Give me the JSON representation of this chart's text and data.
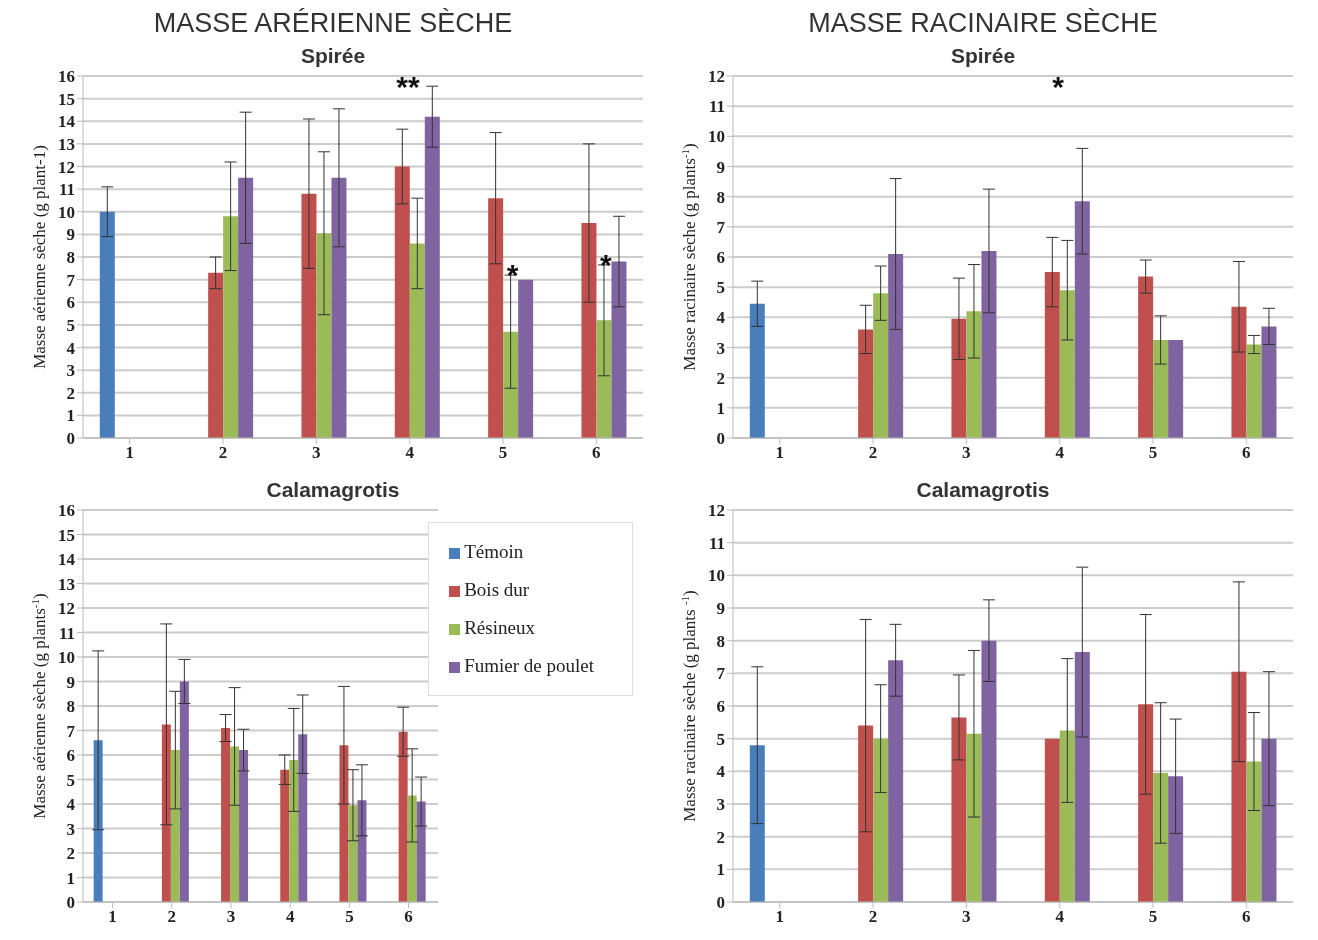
{
  "chart_data": [
    {
      "type": "bar",
      "title": "MASSE ARÉRIENNE SÈCHE",
      "subtitle": "Spirée",
      "ylabel": "Masse aérienne  sèche (g plant-1)",
      "categories": [
        "1",
        "2",
        "3",
        "4",
        "5",
        "6"
      ],
      "ylim": [
        0,
        16
      ],
      "yticks": [
        0,
        1,
        2,
        3,
        4,
        5,
        6,
        7,
        8,
        9,
        10,
        11,
        12,
        13,
        14,
        15,
        16
      ],
      "grid": "y",
      "legend": false,
      "series": [
        {
          "color": "#4a7ebb",
          "values": [
            10.0,
            null,
            null,
            null,
            null,
            null
          ],
          "errors": [
            1.1,
            null,
            null,
            null,
            null,
            null
          ]
        },
        {
          "color": "#c0504d",
          "values": [
            null,
            7.3,
            10.8,
            12.0,
            10.6,
            9.5
          ],
          "errors": [
            null,
            0.7,
            3.3,
            1.65,
            2.9,
            3.5
          ]
        },
        {
          "color": "#9bbb59",
          "values": [
            null,
            9.8,
            9.05,
            8.6,
            4.7,
            5.2
          ],
          "errors": [
            null,
            2.4,
            3.6,
            2.0,
            2.5,
            2.45
          ]
        },
        {
          "color": "#8064a2",
          "values": [
            null,
            11.5,
            11.5,
            14.2,
            7.0,
            7.8
          ],
          "errors": [
            null,
            2.9,
            3.05,
            1.35,
            null,
            2.0
          ]
        }
      ],
      "annotations": [
        "**",
        {
          "text": "*",
          "x": "5",
          "y": 4.7
        },
        {
          "text": "*",
          "x": "6",
          "y": 5.2
        }
      ]
    },
    {
      "type": "bar",
      "title": "MASSE RACINAIRE SÈCHE",
      "subtitle": "Spirée",
      "ylabel": "Masse racinaire sèche (g plants$^{-1}$)",
      "categories": [
        "1",
        "2",
        "3",
        "4",
        "5",
        "6"
      ],
      "ylim": [
        0,
        12
      ],
      "yticks": [
        0,
        1,
        2,
        3,
        4,
        5,
        6,
        7,
        8,
        9,
        10,
        11,
        12
      ],
      "grid": "y",
      "legend": false,
      "series": [
        {
          "color": "#4a7ebb",
          "values": [
            4.45,
            null,
            null,
            null,
            null,
            null
          ],
          "errors": [
            0.75,
            null,
            null,
            null,
            null,
            null
          ]
        },
        {
          "color": "#c0504d",
          "values": [
            null,
            3.6,
            3.95,
            5.5,
            5.35,
            4.35
          ],
          "errors": [
            null,
            0.8,
            1.35,
            1.15,
            0.55,
            1.5
          ]
        },
        {
          "color": "#9bbb59",
          "values": [
            null,
            4.8,
            4.2,
            4.9,
            3.25,
            3.1
          ],
          "errors": [
            null,
            0.9,
            1.55,
            1.65,
            0.8,
            0.3
          ]
        },
        {
          "color": "#8064a2",
          "values": [
            null,
            6.1,
            6.2,
            7.85,
            3.25,
            3.7
          ],
          "errors": [
            null,
            2.5,
            2.05,
            1.75,
            null,
            0.6
          ]
        }
      ],
      "annotations": [
        "*"
      ]
    },
    {
      "type": "bar",
      "subtitle": "Calamagrotis",
      "ylabel": "Masse aérienne sèche (g plants$^{-1}$)",
      "categories": [
        "1",
        "2",
        "3",
        "4",
        "5",
        "6"
      ],
      "ylim": [
        0,
        16
      ],
      "yticks": [
        0,
        1,
        2,
        3,
        4,
        5,
        6,
        7,
        8,
        9,
        10,
        11,
        12,
        13,
        14,
        15,
        16
      ],
      "grid": "y",
      "legend": "top right",
      "series": [
        {
          "name": "Témoin",
          "color": "#4a7ebb",
          "values": [
            6.6,
            null,
            null,
            null,
            null,
            null
          ],
          "errors": [
            3.65,
            null,
            null,
            null,
            null,
            null
          ]
        },
        {
          "name": "Bois dur",
          "color": "#c0504d",
          "values": [
            null,
            7.25,
            7.1,
            5.4,
            6.4,
            6.95
          ],
          "errors": [
            null,
            4.1,
            0.55,
            0.6,
            2.4,
            1.0
          ]
        },
        {
          "name": "Résineux",
          "color": "#9bbb59",
          "values": [
            null,
            6.2,
            6.35,
            5.8,
            3.95,
            4.35
          ],
          "errors": [
            null,
            2.4,
            2.4,
            2.1,
            1.45,
            1.9
          ]
        },
        {
          "name": "Fumier de poulet",
          "color": "#8064a2",
          "values": [
            null,
            9.0,
            6.2,
            6.85,
            4.15,
            4.1
          ],
          "errors": [
            null,
            0.9,
            0.85,
            1.6,
            1.45,
            1.0
          ]
        }
      ]
    },
    {
      "type": "bar",
      "subtitle": "Calamagrotis",
      "ylabel": "Masse racinaire sèche (g plants $^{-1}$)",
      "categories": [
        "1",
        "2",
        "3",
        "4",
        "5",
        "6"
      ],
      "ylim": [
        0,
        12
      ],
      "yticks": [
        0,
        1,
        2,
        3,
        4,
        5,
        6,
        7,
        8,
        9,
        10,
        11,
        12
      ],
      "grid": "y",
      "legend": false,
      "series": [
        {
          "color": "#4a7ebb",
          "values": [
            4.8,
            null,
            null,
            null,
            null,
            null
          ],
          "errors": [
            2.4,
            null,
            null,
            null,
            null,
            null
          ]
        },
        {
          "color": "#c0504d",
          "values": [
            null,
            5.4,
            5.65,
            5.0,
            6.05,
            7.05
          ],
          "errors": [
            null,
            3.25,
            1.3,
            null,
            2.75,
            2.75
          ]
        },
        {
          "color": "#9bbb59",
          "values": [
            null,
            5.0,
            5.15,
            5.25,
            3.95,
            4.3
          ],
          "errors": [
            null,
            1.65,
            2.55,
            2.2,
            2.15,
            1.5
          ]
        },
        {
          "color": "#8064a2",
          "values": [
            null,
            7.4,
            8.0,
            7.65,
            3.85,
            5.0
          ],
          "errors": [
            null,
            1.1,
            1.25,
            2.6,
            1.75,
            2.05
          ]
        }
      ]
    }
  ]
}
